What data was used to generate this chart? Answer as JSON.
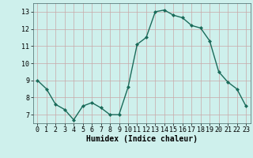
{
  "x": [
    0,
    1,
    2,
    3,
    4,
    5,
    6,
    7,
    8,
    9,
    10,
    11,
    12,
    13,
    14,
    15,
    16,
    17,
    18,
    19,
    20,
    21,
    22,
    23
  ],
  "y": [
    9.0,
    8.5,
    7.6,
    7.3,
    6.7,
    7.5,
    7.7,
    7.4,
    7.0,
    7.0,
    8.6,
    11.1,
    11.5,
    13.0,
    13.1,
    12.8,
    12.65,
    12.2,
    12.05,
    11.3,
    9.5,
    8.9,
    8.5,
    7.5
  ],
  "line_color": "#1a6b5a",
  "marker": "D",
  "marker_size": 2.0,
  "xlabel": "Humidex (Indice chaleur)",
  "xlabel_fontsize": 7,
  "ylim": [
    6.5,
    13.5
  ],
  "xlim": [
    -0.5,
    23.5
  ],
  "yticks": [
    7,
    8,
    9,
    10,
    11,
    12,
    13
  ],
  "xticks": [
    0,
    1,
    2,
    3,
    4,
    5,
    6,
    7,
    8,
    9,
    10,
    11,
    12,
    13,
    14,
    15,
    16,
    17,
    18,
    19,
    20,
    21,
    22,
    23
  ],
  "grid_color": "#c8a8a8",
  "bg_color": "#cef0ec",
  "tick_fontsize": 6,
  "line_width": 1.0
}
